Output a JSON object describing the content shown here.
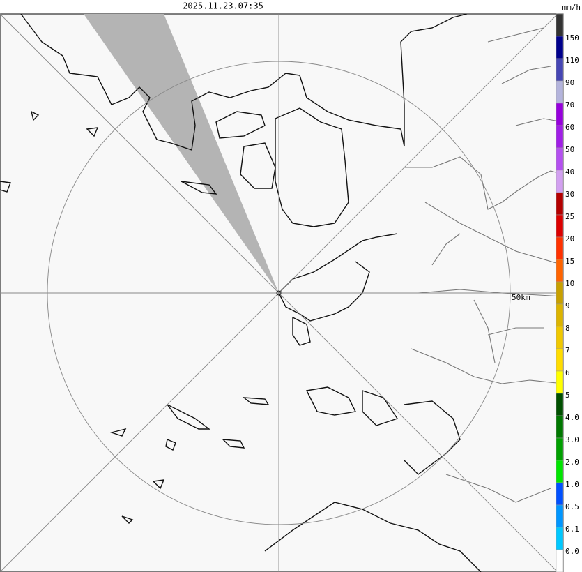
{
  "header": {
    "timestamp": "2025.11.23.07:35",
    "unit": "mm/h"
  },
  "map": {
    "range_label": "50km"
  },
  "legend": {
    "labels": [
      "150",
      "110",
      "90",
      "70",
      "60",
      "50",
      "40",
      "30",
      "25",
      "20",
      "15",
      "10",
      "9",
      "8",
      "7",
      "6",
      "5",
      "4.0",
      "3.0",
      "2.0",
      "1.0",
      "0.5",
      "0.1",
      "0.0"
    ],
    "colors": [
      "#333333",
      "#00008c",
      "#4646b4",
      "#b4b4dc",
      "#9600dc",
      "#a01ee6",
      "#b450f0",
      "#d2a0f0",
      "#b40000",
      "#dc0000",
      "#ff3200",
      "#ff6400",
      "#c8a000",
      "#dcb400",
      "#f0c800",
      "#ffdc00",
      "#ffff00",
      "#005000",
      "#007800",
      "#00a000",
      "#00e600",
      "#0050ff",
      "#0096ff",
      "#00c8ff",
      "#ffffff"
    ]
  }
}
